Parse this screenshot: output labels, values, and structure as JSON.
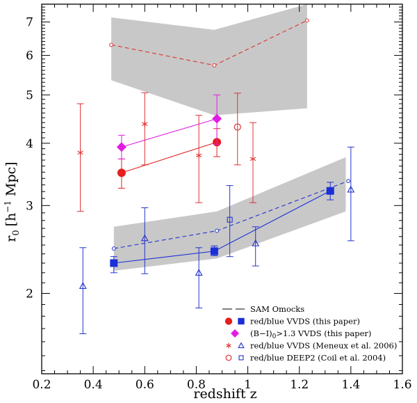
{
  "chart_data": {
    "type": "scatter",
    "xlabel": "redshift z",
    "ylabel": "r_0 [h^-1 Mpc]",
    "ylabel_parts": {
      "r": "r",
      "sub": "0",
      "pre": "[h",
      "sup": "−1",
      "post": " Mpc]"
    },
    "xlim": [
      0.2,
      1.6
    ],
    "ylim_log": [
      1.38,
      7.6
    ],
    "x_ticks": [
      "0.2",
      "0.4",
      "0.6",
      "0.8",
      "1",
      "1.2",
      "1.4",
      "1.6"
    ],
    "x_tick_values": [
      0.2,
      0.4,
      0.6,
      0.8,
      1.0,
      1.2,
      1.4,
      1.6
    ],
    "y_ticks": [
      "2",
      "3",
      "4",
      "5",
      "6",
      "7"
    ],
    "y_tick_values": [
      2,
      3,
      4,
      5,
      6,
      7
    ],
    "bands": [
      {
        "name": "SAM red band",
        "x": [
          0.47,
          0.87,
          1.23
        ],
        "lower": [
          5.35,
          4.55,
          4.7
        ],
        "upper": [
          7.15,
          6.75,
          7.6
        ]
      },
      {
        "name": "SAM blue band",
        "x": [
          0.48,
          0.88,
          1.38
        ],
        "lower": [
          2.22,
          2.35,
          2.92
        ],
        "upper": [
          2.72,
          2.92,
          3.75
        ]
      }
    ],
    "series": [
      {
        "name": "SAM Omocks red",
        "color": "#e03030",
        "marker": "small-open-circle",
        "line": "dashed",
        "x": [
          0.47,
          0.87,
          1.23
        ],
        "y": [
          6.3,
          5.73,
          7.05
        ]
      },
      {
        "name": "SAM Omocks blue",
        "color": "#2233cc",
        "marker": "small-open-circle",
        "line": "dashed",
        "x": [
          0.48,
          0.88,
          1.39
        ],
        "y": [
          2.46,
          2.67,
          3.36
        ]
      },
      {
        "name": "red VVDS (this paper)",
        "color": "#e61e1e",
        "marker": "filled-circle",
        "line": "solid",
        "x": [
          0.51,
          0.88
        ],
        "y": [
          3.49,
          4.02
        ],
        "yerr_low": [
          3.25,
          3.76
        ],
        "yerr_high": [
          3.72,
          4.28
        ]
      },
      {
        "name": "blue VVDS (this paper)",
        "color": "#1a2fd8",
        "marker": "filled-square",
        "line": "solid",
        "x": [
          0.48,
          0.87,
          1.32
        ],
        "y": [
          2.3,
          2.43,
          3.21
        ],
        "yerr_low": [
          2.2,
          2.38,
          3.08
        ],
        "yerr_high": [
          2.37,
          2.49,
          3.34
        ]
      },
      {
        "name": "(B-I)0>1.3 VVDS (this paper)",
        "color": "#e21ce2",
        "marker": "filled-diamond",
        "line": "solid",
        "x": [
          0.51,
          0.88
        ],
        "y": [
          3.93,
          4.48
        ],
        "yerr_low": [
          3.72,
          3.98
        ],
        "yerr_high": [
          4.15,
          5.0
        ]
      },
      {
        "name": "red VVDS (Meneux et al. 2006)",
        "color": "#e03030",
        "marker": "asterisk",
        "line": "none",
        "x": [
          0.35,
          0.6,
          0.81,
          1.02
        ],
        "y": [
          3.83,
          4.37,
          3.78,
          3.72
        ],
        "yerr_low": [
          2.92,
          3.62,
          3.04,
          3.04
        ],
        "yerr_high": [
          4.8,
          5.05,
          4.55,
          4.4
        ]
      },
      {
        "name": "blue VVDS (Meneux et al. 2006)",
        "color": "#2233cc",
        "marker": "open-triangle",
        "line": "none",
        "x": [
          0.36,
          0.6,
          0.81,
          1.03,
          1.4
        ],
        "y": [
          2.07,
          2.58,
          2.2,
          2.52,
          3.23
        ],
        "yerr_low": [
          1.66,
          2.19,
          1.87,
          2.27,
          2.55
        ],
        "yerr_high": [
          2.47,
          2.97,
          2.47,
          2.72,
          3.93
        ]
      },
      {
        "name": "red DEEP2 (Coil et al. 2004)",
        "color": "#e03030",
        "marker": "open-circle",
        "line": "none",
        "x": [
          0.96
        ],
        "y": [
          4.31
        ],
        "yerr_low": [
          3.62
        ],
        "yerr_high": [
          5.04
        ]
      },
      {
        "name": "blue DEEP2 (Coil et al. 2004)",
        "color": "#2233cc",
        "marker": "open-square",
        "line": "none",
        "x": [
          0.93
        ],
        "y": [
          2.81
        ],
        "yerr_low": [
          2.37
        ],
        "yerr_high": [
          3.29
        ]
      }
    ],
    "legend": {
      "position": "bottom-right",
      "entries": [
        {
          "label": "SAM Omocks",
          "symbols": [
            "dashed-line"
          ],
          "colors": [
            "#000000"
          ]
        },
        {
          "label": "red/blue VVDS (this paper)",
          "symbols": [
            "filled-circle",
            "filled-square"
          ],
          "colors": [
            "#e61e1e",
            "#1a2fd8"
          ]
        },
        {
          "label": "(B−I)",
          "label_sub": "0",
          "label_post": ">1.3 VVDS (this paper)",
          "symbols": [
            "filled-diamond"
          ],
          "colors": [
            "#e21ce2"
          ]
        },
        {
          "label": "red/blue VVDS (Meneux et al. 2006)",
          "symbols": [
            "asterisk",
            "open-triangle"
          ],
          "colors": [
            "#e03030",
            "#2233cc"
          ]
        },
        {
          "label": "red/blue DEEP2 (Coil et al. 2004)",
          "symbols": [
            "open-circle",
            "open-square"
          ],
          "colors": [
            "#e03030",
            "#2233cc"
          ]
        }
      ]
    },
    "band_color": "#c8c8c8"
  }
}
